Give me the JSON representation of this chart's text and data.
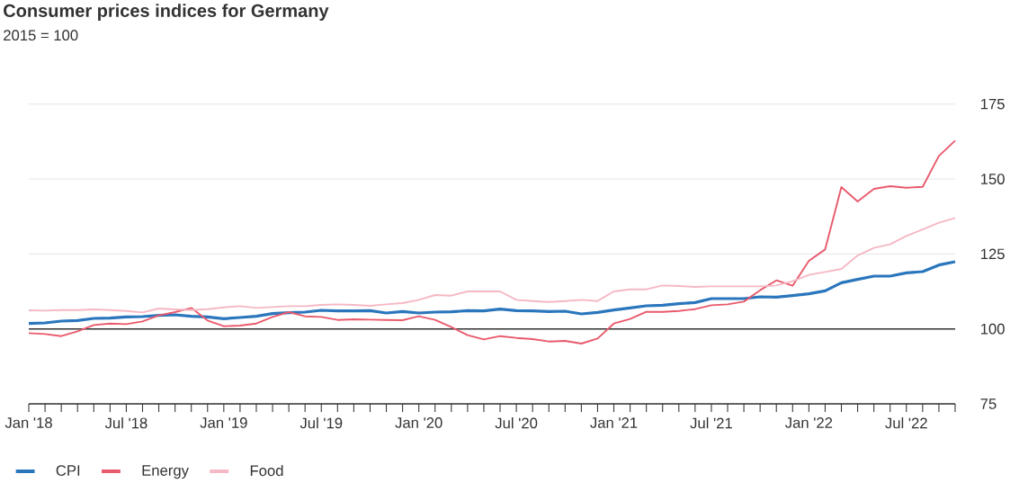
{
  "chart_data": {
    "type": "line",
    "title": "Consumer prices indices for Germany",
    "subtitle": "2015 = 100",
    "x": [
      "2018-01",
      "2018-02",
      "2018-03",
      "2018-04",
      "2018-05",
      "2018-06",
      "2018-07",
      "2018-08",
      "2018-09",
      "2018-10",
      "2018-11",
      "2018-12",
      "2019-01",
      "2019-02",
      "2019-03",
      "2019-04",
      "2019-05",
      "2019-06",
      "2019-07",
      "2019-08",
      "2019-09",
      "2019-10",
      "2019-11",
      "2019-12",
      "2020-01",
      "2020-02",
      "2020-03",
      "2020-04",
      "2020-05",
      "2020-06",
      "2020-07",
      "2020-08",
      "2020-09",
      "2020-10",
      "2020-11",
      "2020-12",
      "2021-01",
      "2021-02",
      "2021-03",
      "2021-04",
      "2021-05",
      "2021-06",
      "2021-07",
      "2021-08",
      "2021-09",
      "2021-10",
      "2021-11",
      "2021-12",
      "2022-01",
      "2022-02",
      "2022-03",
      "2022-04",
      "2022-05",
      "2022-06",
      "2022-07",
      "2022-08",
      "2022-09",
      "2022-10"
    ],
    "series": [
      {
        "name": "CPI",
        "color": "#2a76bd",
        "values": [
          101.8,
          102.0,
          102.6,
          102.8,
          103.5,
          103.6,
          104.0,
          104.1,
          104.5,
          104.7,
          104.2,
          104.0,
          103.4,
          103.8,
          104.2,
          105.1,
          105.4,
          105.6,
          106.2,
          106.0,
          106.0,
          106.1,
          105.3,
          105.8,
          105.3,
          105.6,
          105.7,
          106.1,
          106.0,
          106.6,
          106.1,
          106.0,
          105.8,
          105.9,
          105.0,
          105.5,
          106.3,
          107.0,
          107.7,
          107.9,
          108.4,
          108.8,
          110.1,
          110.1,
          110.1,
          110.7,
          110.6,
          111.1,
          111.7,
          112.7,
          115.4,
          116.5,
          117.6,
          117.6,
          118.7,
          119.1,
          121.3,
          122.4
        ]
      },
      {
        "name": "Energy",
        "color": "#e85a6c",
        "values": [
          98.6,
          98.3,
          97.6,
          99.2,
          101.3,
          101.8,
          101.6,
          102.5,
          104.5,
          105.6,
          107.0,
          102.8,
          100.9,
          101.1,
          101.8,
          104.0,
          105.6,
          104.2,
          104.0,
          103.0,
          103.2,
          103.1,
          103.0,
          102.9,
          104.2,
          103.0,
          100.6,
          97.9,
          96.5,
          97.6,
          97.0,
          96.6,
          95.8,
          96.0,
          95.1,
          96.8,
          101.8,
          103.3,
          105.7,
          105.7,
          106.0,
          106.6,
          107.9,
          108.2,
          109.1,
          112.9,
          116.2,
          114.4,
          122.7,
          126.5,
          147.3,
          142.5,
          146.7,
          147.6,
          147.1,
          147.4,
          157.7,
          162.8
        ]
      },
      {
        "name": "Food",
        "color": "#f5b8c4",
        "values": [
          106.2,
          106.1,
          106.3,
          106.3,
          106.5,
          106.3,
          106.0,
          105.5,
          106.8,
          106.5,
          106.3,
          106.6,
          107.2,
          107.6,
          107.0,
          107.3,
          107.6,
          107.6,
          108.0,
          108.2,
          108.0,
          107.7,
          108.2,
          108.6,
          109.7,
          111.3,
          111.1,
          112.5,
          112.5,
          112.5,
          109.7,
          109.3,
          109.0,
          109.3,
          109.7,
          109.3,
          112.5,
          113.2,
          113.2,
          114.5,
          114.3,
          114.0,
          114.2,
          114.2,
          114.2,
          114.2,
          114.5,
          115.9,
          118.0,
          119.0,
          120.0,
          124.5,
          127.0,
          128.2,
          131.0,
          133.2,
          135.4,
          137.0
        ]
      }
    ],
    "xlim": [
      "2018-01",
      "2022-10"
    ],
    "xticks": [
      {
        "value": "2018-01",
        "label": "Jan '18"
      },
      {
        "value": "2018-02",
        "label": null
      },
      {
        "value": "2018-03",
        "label": null
      },
      {
        "value": "2018-04",
        "label": null
      },
      {
        "value": "2018-05",
        "label": null
      },
      {
        "value": "2018-06",
        "label": null
      },
      {
        "value": "2018-07",
        "label": "Jul '18"
      },
      {
        "value": "2018-08",
        "label": null
      },
      {
        "value": "2018-09",
        "label": null
      },
      {
        "value": "2018-10",
        "label": null
      },
      {
        "value": "2018-11",
        "label": null
      },
      {
        "value": "2018-12",
        "label": null
      },
      {
        "value": "2019-01",
        "label": "Jan '19"
      },
      {
        "value": "2019-02",
        "label": null
      },
      {
        "value": "2019-03",
        "label": null
      },
      {
        "value": "2019-04",
        "label": null
      },
      {
        "value": "2019-05",
        "label": null
      },
      {
        "value": "2019-06",
        "label": null
      },
      {
        "value": "2019-07",
        "label": "Jul '19"
      },
      {
        "value": "2019-08",
        "label": null
      },
      {
        "value": "2019-09",
        "label": null
      },
      {
        "value": "2019-10",
        "label": null
      },
      {
        "value": "2019-11",
        "label": null
      },
      {
        "value": "2019-12",
        "label": null
      },
      {
        "value": "2020-01",
        "label": "Jan '20"
      },
      {
        "value": "2020-02",
        "label": null
      },
      {
        "value": "2020-03",
        "label": null
      },
      {
        "value": "2020-04",
        "label": null
      },
      {
        "value": "2020-05",
        "label": null
      },
      {
        "value": "2020-06",
        "label": null
      },
      {
        "value": "2020-07",
        "label": "Jul '20"
      },
      {
        "value": "2020-08",
        "label": null
      },
      {
        "value": "2020-09",
        "label": null
      },
      {
        "value": "2020-10",
        "label": null
      },
      {
        "value": "2020-11",
        "label": null
      },
      {
        "value": "2020-12",
        "label": null
      },
      {
        "value": "2021-01",
        "label": "Jan '21"
      },
      {
        "value": "2021-02",
        "label": null
      },
      {
        "value": "2021-03",
        "label": null
      },
      {
        "value": "2021-04",
        "label": null
      },
      {
        "value": "2021-05",
        "label": null
      },
      {
        "value": "2021-06",
        "label": null
      },
      {
        "value": "2021-07",
        "label": "Jul '21"
      },
      {
        "value": "2021-08",
        "label": null
      },
      {
        "value": "2021-09",
        "label": null
      },
      {
        "value": "2021-10",
        "label": null
      },
      {
        "value": "2021-11",
        "label": null
      },
      {
        "value": "2021-12",
        "label": null
      },
      {
        "value": "2022-01",
        "label": "Jan '22"
      },
      {
        "value": "2022-02",
        "label": null
      },
      {
        "value": "2022-03",
        "label": null
      },
      {
        "value": "2022-04",
        "label": null
      },
      {
        "value": "2022-05",
        "label": null
      },
      {
        "value": "2022-06",
        "label": null
      },
      {
        "value": "2022-07",
        "label": "Jul '22"
      },
      {
        "value": "2022-08",
        "label": null
      },
      {
        "value": "2022-09",
        "label": null
      },
      {
        "value": "2022-10",
        "label": null
      }
    ],
    "ylim": [
      75,
      175
    ],
    "yticks": [
      75,
      100,
      125,
      150,
      175
    ],
    "ref_lines": [
      {
        "axis": "y",
        "value": 100,
        "color": "#333333"
      }
    ],
    "grid": "y",
    "legend": "bottom left",
    "marker": "none",
    "line_style": "solid"
  }
}
